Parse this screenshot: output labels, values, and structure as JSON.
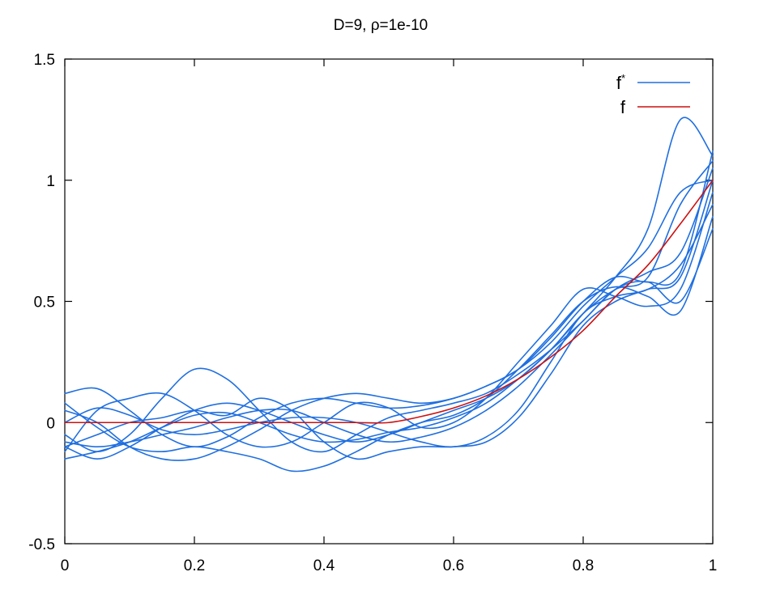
{
  "chart_data": {
    "type": "line",
    "title": "D=9, ρ=1e-10",
    "xlabel": "",
    "ylabel": "",
    "xlim": [
      0,
      1
    ],
    "ylim": [
      -0.5,
      1.5
    ],
    "x_ticks": [
      0,
      0.2,
      0.4,
      0.6,
      0.8,
      1
    ],
    "x_tick_labels": [
      "0",
      "0.2",
      "0.4",
      "0.6",
      "0.8",
      "1"
    ],
    "y_ticks": [
      -0.5,
      0,
      0.5,
      1,
      1.5
    ],
    "y_tick_labels": [
      "-0.5",
      "0",
      "0.5",
      "1",
      "1.5"
    ],
    "grid": false,
    "legend": {
      "placement": "top-right",
      "entries": [
        {
          "label": "f",
          "superscript": "*",
          "color": "#1f6fe0"
        },
        {
          "label": "f",
          "superscript": "",
          "color": "#cc1111"
        }
      ]
    },
    "x": [
      0,
      0.05,
      0.1,
      0.15,
      0.2,
      0.25,
      0.3,
      0.35,
      0.4,
      0.45,
      0.5,
      0.55,
      0.6,
      0.65,
      0.7,
      0.75,
      0.8,
      0.85,
      0.9,
      0.95,
      1
    ],
    "series": [
      {
        "color": "#1f6fe0",
        "values": [
          0.12,
          0.14,
          0.05,
          -0.05,
          -0.1,
          -0.06,
          0.02,
          0.08,
          0.1,
          0.08,
          0.06,
          0.07,
          0.1,
          0.15,
          0.22,
          0.35,
          0.5,
          0.6,
          0.58,
          0.62,
          1.12
        ]
      },
      {
        "color": "#1f6fe0",
        "values": [
          -0.12,
          0.05,
          0.1,
          0.12,
          0.05,
          -0.05,
          -0.1,
          -0.08,
          0.0,
          0.08,
          0.06,
          -0.02,
          0.0,
          0.1,
          0.25,
          0.4,
          0.55,
          0.52,
          0.48,
          0.55,
          0.95
        ]
      },
      {
        "color": "#1f6fe0",
        "values": [
          -0.05,
          -0.12,
          -0.05,
          0.1,
          0.22,
          0.18,
          0.05,
          -0.08,
          -0.12,
          -0.05,
          0.02,
          0.05,
          0.08,
          0.12,
          0.2,
          0.3,
          0.42,
          0.55,
          0.58,
          0.5,
          0.8
        ]
      },
      {
        "color": "#1f6fe0",
        "values": [
          -0.1,
          -0.15,
          -0.1,
          -0.02,
          0.05,
          0.08,
          0.05,
          0.0,
          -0.05,
          -0.08,
          -0.05,
          0.0,
          0.05,
          0.1,
          0.18,
          0.3,
          0.45,
          0.6,
          0.8,
          1.25,
          1.1
        ]
      },
      {
        "color": "#1f6fe0",
        "values": [
          0.05,
          0.0,
          -0.1,
          -0.15,
          -0.15,
          -0.1,
          -0.03,
          0.05,
          0.1,
          0.12,
          0.1,
          0.08,
          0.1,
          0.15,
          0.22,
          0.33,
          0.48,
          0.6,
          0.72,
          0.95,
          1.0
        ]
      },
      {
        "color": "#1f6fe0",
        "values": [
          -0.08,
          -0.1,
          -0.08,
          -0.05,
          -0.02,
          0.02,
          0.05,
          0.05,
          0.0,
          -0.05,
          -0.08,
          -0.06,
          -0.02,
          0.05,
          0.15,
          0.28,
          0.42,
          0.55,
          0.62,
          0.7,
          1.05
        ]
      },
      {
        "color": "#1f6fe0",
        "values": [
          -0.15,
          -0.12,
          -0.08,
          -0.02,
          0.03,
          0.04,
          0.0,
          -0.05,
          -0.08,
          -0.07,
          -0.04,
          -0.02,
          0.02,
          0.08,
          0.18,
          0.3,
          0.45,
          0.55,
          0.6,
          0.9,
          1.08
        ]
      },
      {
        "color": "#1f6fe0",
        "values": [
          0.0,
          0.06,
          0.03,
          -0.03,
          -0.05,
          -0.03,
          0.0,
          0.02,
          0.02,
          0.0,
          -0.04,
          -0.08,
          -0.1,
          -0.06,
          0.05,
          0.25,
          0.45,
          0.52,
          0.55,
          0.65,
          0.9
        ]
      },
      {
        "color": "#1f6fe0",
        "values": [
          0.08,
          -0.02,
          -0.1,
          -0.12,
          -0.1,
          -0.12,
          -0.15,
          -0.2,
          -0.18,
          -0.12,
          -0.05,
          0.0,
          0.03,
          0.1,
          0.22,
          0.36,
          0.5,
          0.56,
          0.52,
          0.46,
          0.85
        ]
      },
      {
        "color": "#1f6fe0",
        "values": [
          -0.1,
          -0.05,
          0.0,
          0.02,
          0.05,
          0.03,
          0.1,
          0.05,
          -0.08,
          -0.15,
          -0.12,
          -0.1,
          -0.1,
          -0.08,
          0.02,
          0.2,
          0.4,
          0.5,
          0.55,
          0.6,
          1.0
        ]
      },
      {
        "name": "f",
        "color": "#cc1111",
        "values": [
          0,
          0,
          0,
          0,
          0,
          0,
          0,
          0,
          0,
          0,
          0,
          0.025,
          0.06,
          0.11,
          0.18,
          0.27,
          0.38,
          0.52,
          0.65,
          0.82,
          1.0
        ]
      }
    ]
  }
}
